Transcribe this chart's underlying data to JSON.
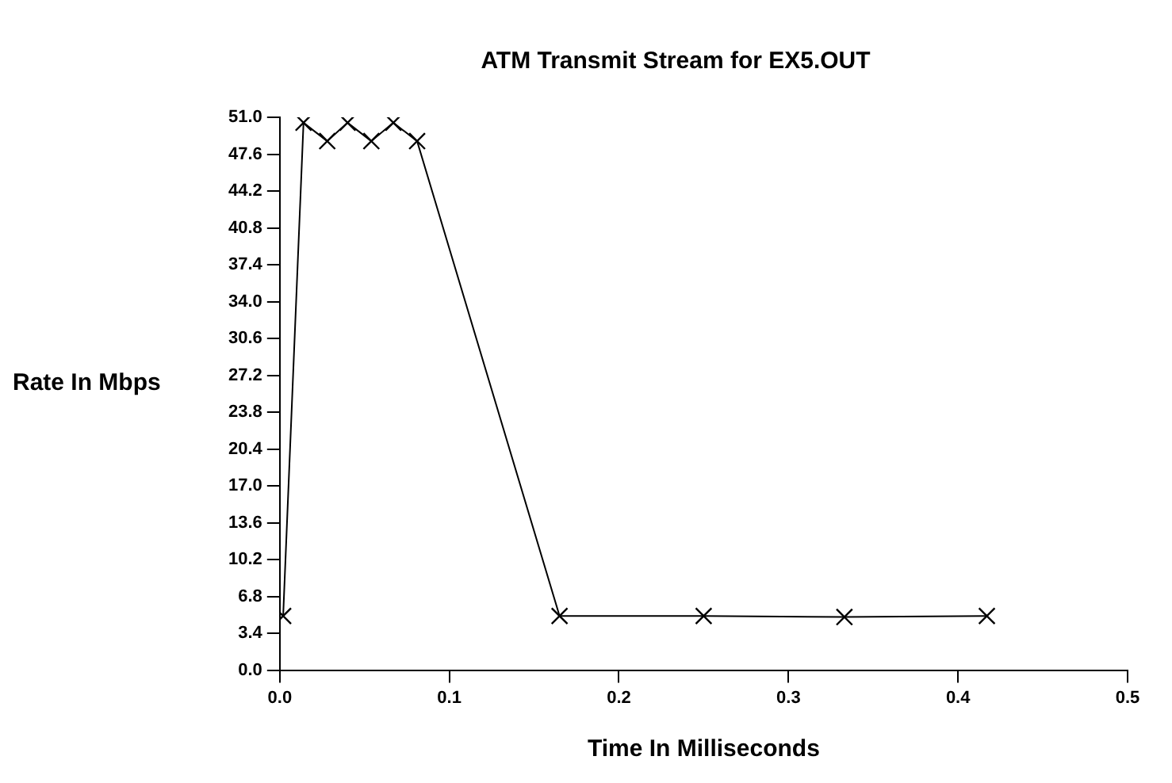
{
  "chart_data": {
    "type": "line",
    "title": "ATM Transmit Stream for EX5.OUT",
    "xlabel": "Time In Milliseconds",
    "ylabel": "Rate In Mbps",
    "series": [
      {
        "color": "#000000",
        "x": [
          0.002,
          0.014,
          0.028,
          0.04,
          0.054,
          0.067,
          0.081,
          0.165,
          0.25,
          0.333,
          0.417
        ],
        "values": [
          5.0,
          50.5,
          48.8,
          50.5,
          48.8,
          50.5,
          48.8,
          5.0,
          5.0,
          4.9,
          5.0
        ]
      }
    ],
    "xlim": [
      0,
      0.5
    ],
    "xticks": [
      {
        "value": 0,
        "label": "0.0"
      },
      0.1,
      0.2,
      0.3,
      0.4,
      0.5
    ],
    "ylim": [
      0,
      51
    ],
    "yticks": [
      {
        "value": 0,
        "label": "0.0"
      },
      3.4,
      6.8,
      10.2,
      13.6,
      {
        "value": 17,
        "label": "17.0"
      },
      20.4,
      23.8,
      27.2,
      30.6,
      {
        "value": 34,
        "label": "34.0"
      },
      37.4,
      40.8,
      44.2,
      47.6,
      {
        "value": 51,
        "label": "51.0"
      }
    ],
    "grid": false,
    "legend": false,
    "marker": "cross",
    "line_style": "solid"
  }
}
